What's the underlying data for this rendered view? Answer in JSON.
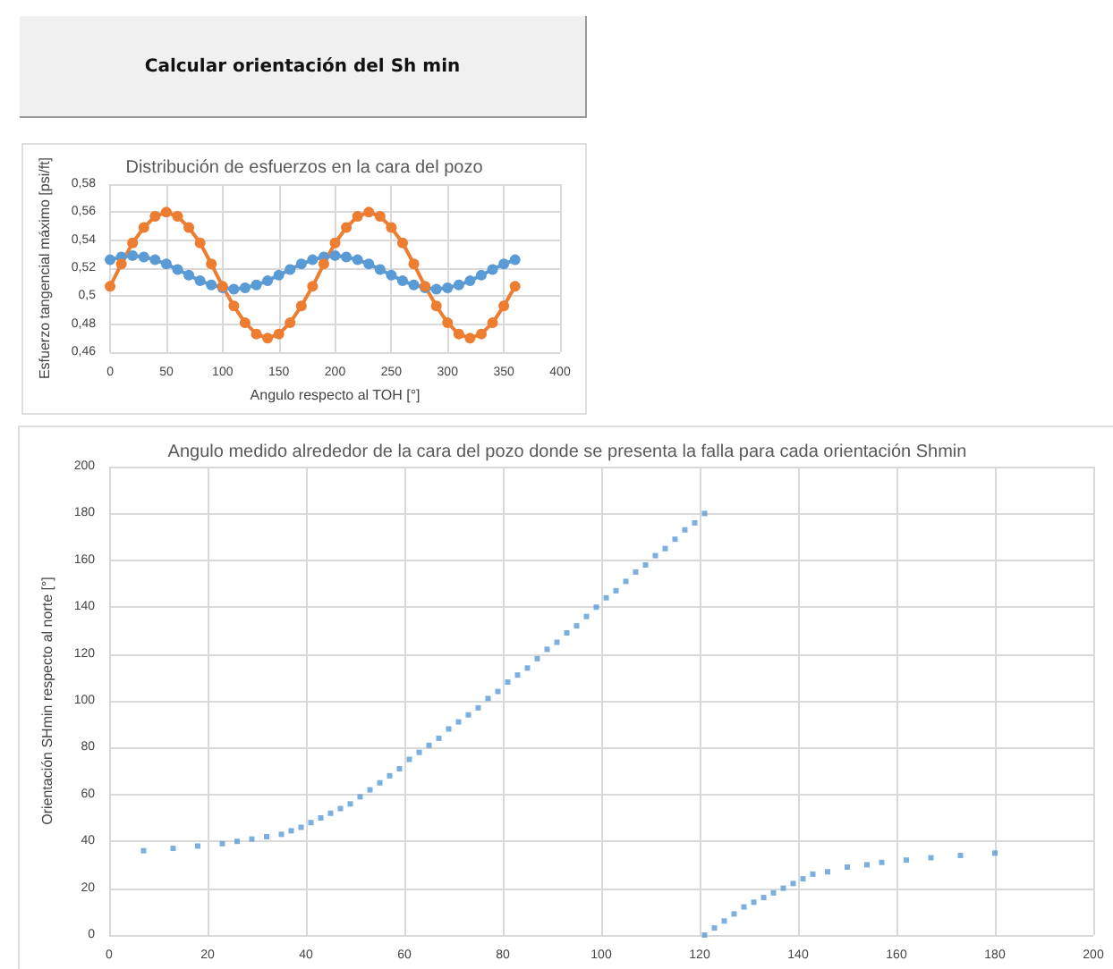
{
  "chart_data": [
    {
      "type": "other",
      "title": "Calcular orientación del Sh min"
    },
    {
      "type": "line",
      "title": "Distribución de esfuerzos en la cara del pozo",
      "xlabel": "Angulo respecto al TOH [°]",
      "ylabel": "Esfuerzo tangencial máximo [psi/ft]",
      "x": [
        0,
        10,
        20,
        30,
        40,
        50,
        60,
        70,
        80,
        90,
        100,
        110,
        120,
        130,
        140,
        150,
        160,
        170,
        180,
        190,
        200,
        210,
        220,
        230,
        240,
        250,
        260,
        270,
        280,
        290,
        300,
        310,
        320,
        330,
        340,
        350,
        360
      ],
      "series": [
        {
          "color": "#5b9bd5",
          "values": [
            0.526,
            0.528,
            0.529,
            0.528,
            0.526,
            0.523,
            0.519,
            0.515,
            0.511,
            0.508,
            0.506,
            0.505,
            0.506,
            0.508,
            0.511,
            0.515,
            0.519,
            0.523,
            0.526,
            0.528,
            0.529,
            0.528,
            0.526,
            0.523,
            0.519,
            0.515,
            0.511,
            0.508,
            0.506,
            0.505,
            0.506,
            0.508,
            0.511,
            0.515,
            0.519,
            0.523,
            0.526
          ]
        },
        {
          "color": "#ed7d31",
          "values": [
            0.507,
            0.523,
            0.538,
            0.549,
            0.557,
            0.56,
            0.557,
            0.549,
            0.538,
            0.523,
            0.507,
            0.493,
            0.481,
            0.473,
            0.47,
            0.473,
            0.481,
            0.493,
            0.507,
            0.523,
            0.538,
            0.549,
            0.557,
            0.56,
            0.557,
            0.549,
            0.538,
            0.523,
            0.507,
            0.493,
            0.481,
            0.473,
            0.47,
            0.473,
            0.481,
            0.493,
            0.507
          ]
        }
      ],
      "xlim": [
        0,
        400
      ],
      "xticks": [
        0,
        50,
        100,
        150,
        200,
        250,
        300,
        350,
        400
      ],
      "ylim": [
        0.46,
        0.58
      ],
      "yticks": [
        {
          "value": 0.46,
          "label": "0,46"
        },
        {
          "value": 0.48,
          "label": "0,48"
        },
        {
          "value": 0.5,
          "label": "0,5"
        },
        {
          "value": 0.52,
          "label": "0,52"
        },
        {
          "value": 0.54,
          "label": "0,54"
        },
        {
          "value": 0.56,
          "label": "0,56"
        },
        {
          "value": 0.58,
          "label": "0,58"
        }
      ],
      "grid": true,
      "marker": "circle",
      "line_style": "solid"
    },
    {
      "type": "scatter",
      "title": "Angulo medido alrededor de la cara del pozo donde se presenta la falla para cada orientación Shmin",
      "ylabel": "Orientación SHmin respecto al norte [°]",
      "x": [
        7,
        13,
        18,
        23,
        26,
        29,
        32,
        35,
        37,
        39,
        41,
        43,
        45,
        47,
        49,
        51,
        53,
        55,
        57,
        59,
        61,
        63,
        65,
        67,
        69,
        71,
        73,
        75,
        77,
        79,
        81,
        83,
        85,
        87,
        89,
        91,
        93,
        95,
        97,
        99,
        101,
        103,
        105,
        107,
        109,
        111,
        113,
        115,
        117,
        119,
        121,
        121,
        123,
        125,
        127,
        129,
        131,
        133,
        135,
        137,
        139,
        141,
        143,
        146,
        150,
        154,
        157,
        162,
        167,
        173,
        180
      ],
      "series": [
        {
          "color": "#5b9bd5",
          "values": [
            36,
            37,
            38,
            39,
            40,
            41,
            42,
            43,
            44.5,
            46,
            48,
            50,
            52,
            54,
            56,
            59,
            62,
            65,
            68,
            71,
            75,
            78,
            81,
            84,
            88,
            91,
            94,
            97,
            101,
            104,
            108,
            111,
            114,
            118,
            122,
            125,
            129,
            132,
            136,
            140,
            144,
            147,
            151,
            155,
            158,
            162,
            165,
            169,
            173,
            176,
            180,
            0,
            3,
            6,
            9,
            12,
            14,
            16,
            18,
            20,
            22,
            24,
            26,
            27,
            29,
            30,
            31,
            32,
            33,
            34,
            35
          ]
        }
      ],
      "xlim": [
        0,
        200
      ],
      "xticks": [
        0,
        20,
        40,
        60,
        80,
        100,
        120,
        140,
        160,
        180,
        200
      ],
      "ylim": [
        0,
        200
      ],
      "yticks": [
        0,
        20,
        40,
        60,
        80,
        100,
        120,
        140,
        160,
        180,
        200
      ],
      "grid": true,
      "marker": "square"
    }
  ]
}
